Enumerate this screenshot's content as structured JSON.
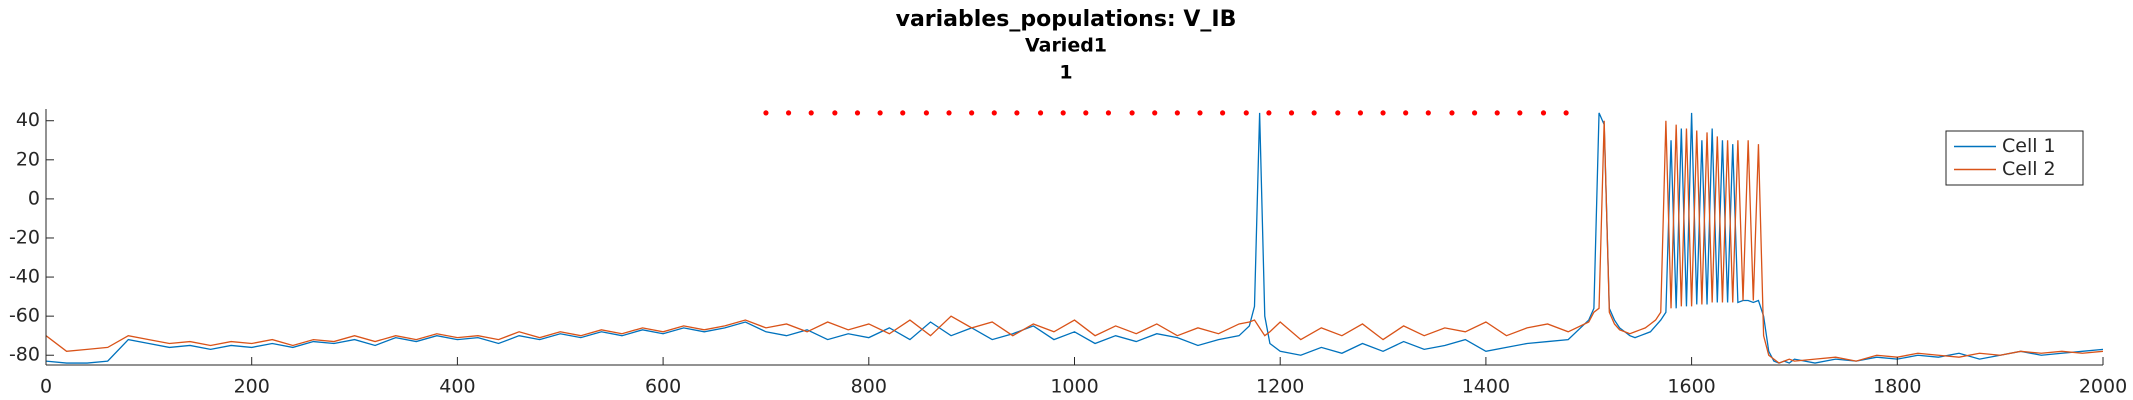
{
  "chart_data": {
    "type": "line",
    "title": "variables_populations: V_IB",
    "subtitle": "Varied1",
    "subsubtitle": "1",
    "xlim": [
      0,
      2000
    ],
    "xticks": [
      0,
      200,
      400,
      600,
      800,
      1000,
      1200,
      1400,
      1600,
      1800,
      2000
    ],
    "ylim": [
      -85,
      46
    ],
    "yticks": [
      -80,
      -60,
      -40,
      -20,
      0,
      20,
      40
    ],
    "legend": "upper right",
    "x": [
      0,
      20,
      40,
      60,
      80,
      100,
      120,
      140,
      160,
      180,
      200,
      220,
      240,
      260,
      280,
      300,
      320,
      340,
      360,
      380,
      400,
      420,
      440,
      460,
      480,
      500,
      520,
      540,
      560,
      580,
      600,
      620,
      640,
      660,
      680,
      700,
      720,
      740,
      760,
      780,
      800,
      820,
      840,
      860,
      880,
      900,
      920,
      940,
      960,
      980,
      1000,
      1020,
      1040,
      1060,
      1080,
      1100,
      1120,
      1140,
      1160,
      1170,
      1175,
      1180,
      1185,
      1190,
      1200,
      1220,
      1240,
      1260,
      1280,
      1300,
      1320,
      1340,
      1360,
      1380,
      1400,
      1420,
      1440,
      1460,
      1480,
      1500,
      1505,
      1510,
      1515,
      1520,
      1525,
      1530,
      1535,
      1540,
      1545,
      1550,
      1555,
      1560,
      1565,
      1570,
      1575,
      1580,
      1585,
      1590,
      1595,
      1600,
      1605,
      1610,
      1615,
      1620,
      1625,
      1630,
      1635,
      1640,
      1645,
      1650,
      1655,
      1660,
      1665,
      1670,
      1675,
      1680,
      1685,
      1690,
      1695,
      1700,
      1720,
      1740,
      1760,
      1780,
      1800,
      1820,
      1840,
      1860,
      1880,
      1900,
      1920,
      1940,
      1960,
      1980,
      2000
    ],
    "series": [
      {
        "name": "Cell 1",
        "color": "#0072bd",
        "values": [
          -83,
          -84,
          -84,
          -83,
          -72,
          -74,
          -76,
          -75,
          -77,
          -75,
          -76,
          -74,
          -76,
          -73,
          -74,
          -72,
          -75,
          -71,
          -73,
          -70,
          -72,
          -71,
          -74,
          -70,
          -72,
          -69,
          -71,
          -68,
          -70,
          -67,
          -69,
          -66,
          -68,
          -66,
          -63,
          -68,
          -70,
          -67,
          -72,
          -69,
          -71,
          -66,
          -72,
          -63,
          -70,
          -66,
          -72,
          -69,
          -65,
          -72,
          -68,
          -74,
          -70,
          -73,
          -69,
          -71,
          -75,
          -72,
          -70,
          -65,
          -55,
          44,
          -60,
          -74,
          -78,
          -80,
          -76,
          -79,
          -74,
          -78,
          -73,
          -77,
          -75,
          -72,
          -78,
          -76,
          -74,
          -73,
          -72,
          -62,
          -56,
          44,
          38,
          -56,
          -62,
          -66,
          -68,
          -70,
          -71,
          -70,
          -69,
          -68,
          -65,
          -62,
          -58,
          30,
          -56,
          36,
          -55,
          44,
          -54,
          30,
          -54,
          36,
          -53,
          30,
          -53,
          28,
          -53,
          -52,
          -52,
          -53,
          -52,
          -60,
          -78,
          -83,
          -84,
          -83,
          -84,
          -82,
          -84,
          -82,
          -83,
          -81,
          -82,
          -80,
          -81,
          -79,
          -82,
          -80,
          -78,
          -80,
          -79,
          -78,
          -77
        ]
      },
      {
        "name": "Cell 2",
        "color": "#d95319",
        "values": [
          -70,
          -78,
          -77,
          -76,
          -70,
          -72,
          -74,
          -73,
          -75,
          -73,
          -74,
          -72,
          -75,
          -72,
          -73,
          -70,
          -73,
          -70,
          -72,
          -69,
          -71,
          -70,
          -72,
          -68,
          -71,
          -68,
          -70,
          -67,
          -69,
          -66,
          -68,
          -65,
          -67,
          -65,
          -62,
          -66,
          -64,
          -68,
          -63,
          -67,
          -64,
          -69,
          -62,
          -70,
          -60,
          -66,
          -63,
          -70,
          -64,
          -68,
          -62,
          -70,
          -65,
          -69,
          -64,
          -70,
          -66,
          -69,
          -64,
          -63,
          -62,
          -66,
          -70,
          -68,
          -63,
          -72,
          -66,
          -70,
          -64,
          -72,
          -65,
          -70,
          -66,
          -68,
          -63,
          -70,
          -66,
          -64,
          -68,
          -63,
          -58,
          -56,
          40,
          -58,
          -64,
          -67,
          -68,
          -69,
          -68,
          -67,
          -66,
          -64,
          -62,
          -58,
          40,
          -56,
          38,
          -55,
          36,
          -55,
          35,
          -54,
          34,
          -53,
          32,
          -53,
          30,
          -53,
          30,
          -52,
          30,
          -52,
          28,
          -70,
          -80,
          -82,
          -84,
          -83,
          -82,
          -83,
          -82,
          -81,
          -83,
          -80,
          -81,
          -79,
          -80,
          -81,
          -79,
          -80,
          -78,
          -79,
          -78,
          -79,
          -78
        ]
      }
    ],
    "markers": {
      "color": "#ff0000",
      "x": [
        700,
        722,
        744,
        767,
        789,
        811,
        833,
        856,
        878,
        900,
        922,
        944,
        967,
        989,
        1011,
        1033,
        1056,
        1078,
        1100,
        1122,
        1144,
        1167,
        1189,
        1211,
        1233,
        1256,
        1278,
        1300,
        1322,
        1344,
        1367,
        1389,
        1411,
        1433,
        1456,
        1478
      ],
      "y": [
        44,
        44,
        44,
        44,
        44,
        44,
        44,
        44,
        44,
        44,
        44,
        44,
        44,
        44,
        44,
        44,
        44,
        44,
        44,
        44,
        44,
        44,
        44,
        44,
        44,
        44,
        44,
        44,
        44,
        44,
        44,
        44,
        44,
        44,
        44,
        44
      ]
    }
  }
}
